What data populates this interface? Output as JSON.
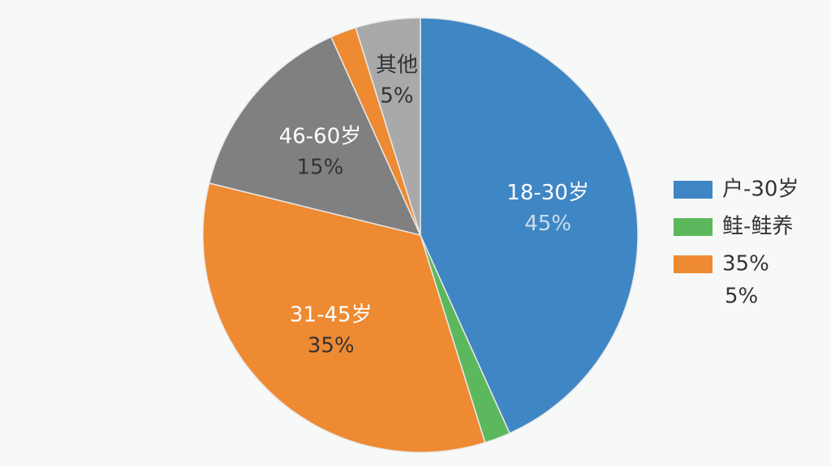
{
  "chart_data": {
    "type": "pie",
    "categories": [
      "18-30岁",
      null,
      "31-45岁",
      "46-60岁",
      null,
      "其他"
    ],
    "values": [
      45,
      2,
      35,
      15,
      2,
      5
    ],
    "value_labels": [
      "45%",
      null,
      "35%",
      "15%",
      null,
      "5%"
    ],
    "colors": [
      "#3f86c4",
      "#5cb85c",
      "#ee8a32",
      "#808080",
      "#ee8a32",
      "#a9a9a9"
    ],
    "legend": [
      {
        "label": "户-30岁",
        "color": "#3f86c4"
      },
      {
        "label": "鲑-鲑养",
        "color": "#5cb85c"
      },
      {
        "label": "35%",
        "color": "#ee8a32"
      },
      {
        "label": "5%"
      }
    ]
  }
}
